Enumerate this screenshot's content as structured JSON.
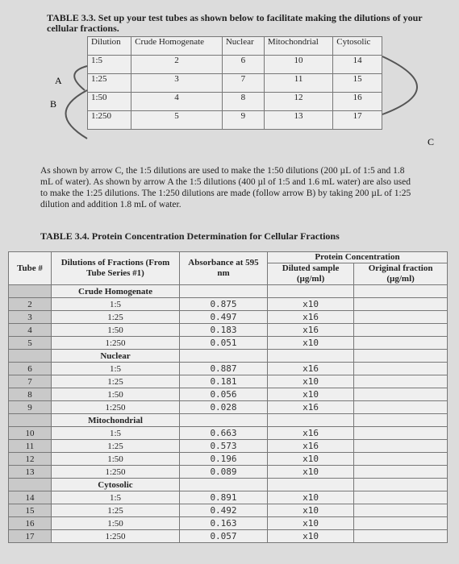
{
  "table33": {
    "title": "TABLE 3.3. Set up your test tubes as shown below to facilitate making the dilutions of your cellular fractions.",
    "headers": [
      "Dilution",
      "Crude Homogenate",
      "Nuclear",
      "Mitochondrial",
      "Cytosolic"
    ],
    "rows": [
      [
        "1:5",
        "2",
        "6",
        "10",
        "14"
      ],
      [
        "1:25",
        "3",
        "7",
        "11",
        "15"
      ],
      [
        "1:50",
        "4",
        "8",
        "12",
        "16"
      ],
      [
        "1:250",
        "5",
        "9",
        "13",
        "17"
      ]
    ],
    "arrows": [
      "A",
      "B",
      "C"
    ]
  },
  "paragraph": "As shown by arrow C, the 1:5 dilutions are used to make the 1:50 dilutions (200 µL of 1:5 and 1.8 mL of water). As shown by arrow A the 1:5 dilutions (400 µl of 1:5 and 1.6 mL water) are also used to make the 1:25 dilutions. The 1:250 dilutions are made (follow arrow B) by taking 200 µL of 1:25 dilution and addition 1.8 mL of water.",
  "table34": {
    "title": "TABLE 3.4. Protein Concentration Determination for Cellular Fractions",
    "headers": {
      "tube": "Tube #",
      "dilutions": "Dilutions of Fractions (From Tube Series #1)",
      "absorbance": "Absorbance at 595 nm",
      "protein": "Protein Concentration",
      "diluted": "Diluted sample (µg/ml)",
      "original": "Original fraction (µg/ml)"
    },
    "groups": [
      {
        "name": "Crude Homogenate",
        "rows": [
          [
            "2",
            "1:5",
            "0.875",
            "x10"
          ],
          [
            "3",
            "1:25",
            "0.497",
            "x16"
          ],
          [
            "4",
            "1:50",
            "0.183",
            "x16"
          ],
          [
            "5",
            "1:250",
            "0.051",
            "x10"
          ]
        ]
      },
      {
        "name": "Nuclear",
        "rows": [
          [
            "6",
            "1:5",
            "0.887",
            "x16"
          ],
          [
            "7",
            "1:25",
            "0.181",
            "x10"
          ],
          [
            "8",
            "1:50",
            "0.056",
            "x10"
          ],
          [
            "9",
            "1:250",
            "0.028",
            "x16"
          ]
        ]
      },
      {
        "name": "Mitochondrial",
        "rows": [
          [
            "10",
            "1:5",
            "0.663",
            "x16"
          ],
          [
            "11",
            "1:25",
            "0.573",
            "x16"
          ],
          [
            "12",
            "1:50",
            "0.196",
            "x10"
          ],
          [
            "13",
            "1:250",
            "0.089",
            "x10"
          ]
        ]
      },
      {
        "name": "Cytosolic",
        "rows": [
          [
            "14",
            "1:5",
            "0.891",
            "x10"
          ],
          [
            "15",
            "1:25",
            "0.492",
            "x10"
          ],
          [
            "16",
            "1:50",
            "0.163",
            "x10"
          ],
          [
            "17",
            "1:250",
            "0.057",
            "x10"
          ]
        ]
      }
    ]
  }
}
